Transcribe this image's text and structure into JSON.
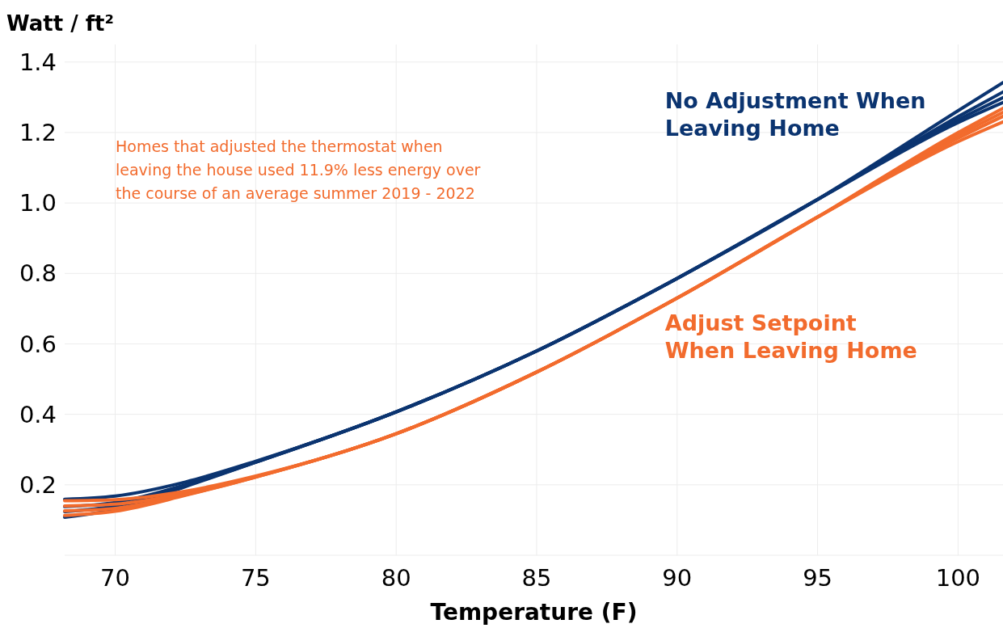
{
  "chart_data": {
    "type": "line",
    "ylabel": "Watt / ft²",
    "xlabel": "Temperature (F)",
    "x": [
      68.2,
      70,
      72.5,
      75,
      80,
      85,
      90,
      95,
      100,
      101.6
    ],
    "xlim": [
      68.2,
      101.6
    ],
    "xticks": [
      70,
      75,
      80,
      85,
      90,
      95,
      100
    ],
    "ylim": [
      0,
      1.45
    ],
    "yticks": [
      {
        "value": 0.2,
        "label": "0.2"
      },
      {
        "value": 0.4,
        "label": "0.4"
      },
      {
        "value": 0.6,
        "label": "0.6"
      },
      {
        "value": 0.8,
        "label": "0.8"
      },
      {
        "value": 1,
        "label": "1.0"
      },
      {
        "value": 1.2,
        "label": "1.2"
      },
      {
        "value": 1.4,
        "label": "1.4"
      }
    ],
    "grid": true,
    "marker": "none",
    "line_style": "solid",
    "annotations": [
      "Homes that adjusted the thermostat when leaving the house used 11.9% less energy over the course of an average summer 2019 - 2022"
    ],
    "series": [
      {
        "name": "No Adjustment When Leaving Home",
        "color": "#0b3470",
        "values": [
          0.108,
          0.13,
          0.195,
          0.264,
          0.407,
          0.58,
          0.786,
          1.01,
          1.262,
          1.342
        ]
      },
      {
        "color": "#0b3470",
        "values": [
          0.124,
          0.14,
          0.198,
          0.264,
          0.407,
          0.58,
          0.786,
          1.01,
          1.245,
          1.315
        ]
      },
      {
        "color": "#0b3470",
        "values": [
          0.138,
          0.15,
          0.2,
          0.265,
          0.407,
          0.58,
          0.786,
          1.01,
          1.236,
          1.299
        ]
      },
      {
        "color": "#0b3470",
        "values": [
          0.159,
          0.168,
          0.208,
          0.267,
          0.407,
          0.58,
          0.786,
          1.01,
          1.228,
          1.285
        ]
      },
      {
        "name": "Adjust Setpoint When Leaving Home",
        "color": "#f26b2d",
        "values": [
          0.113,
          0.125,
          0.17,
          0.222,
          0.345,
          0.52,
          0.73,
          0.96,
          1.2,
          1.269
        ]
      },
      {
        "color": "#f26b2d",
        "values": [
          0.126,
          0.133,
          0.172,
          0.222,
          0.345,
          0.52,
          0.73,
          0.96,
          1.192,
          1.257
        ]
      },
      {
        "color": "#f26b2d",
        "values": [
          0.14,
          0.145,
          0.176,
          0.223,
          0.345,
          0.52,
          0.73,
          0.96,
          1.184,
          1.246
        ]
      },
      {
        "color": "#f26b2d",
        "values": [
          0.155,
          0.158,
          0.182,
          0.225,
          0.345,
          0.52,
          0.73,
          0.96,
          1.174,
          1.23
        ]
      }
    ]
  }
}
